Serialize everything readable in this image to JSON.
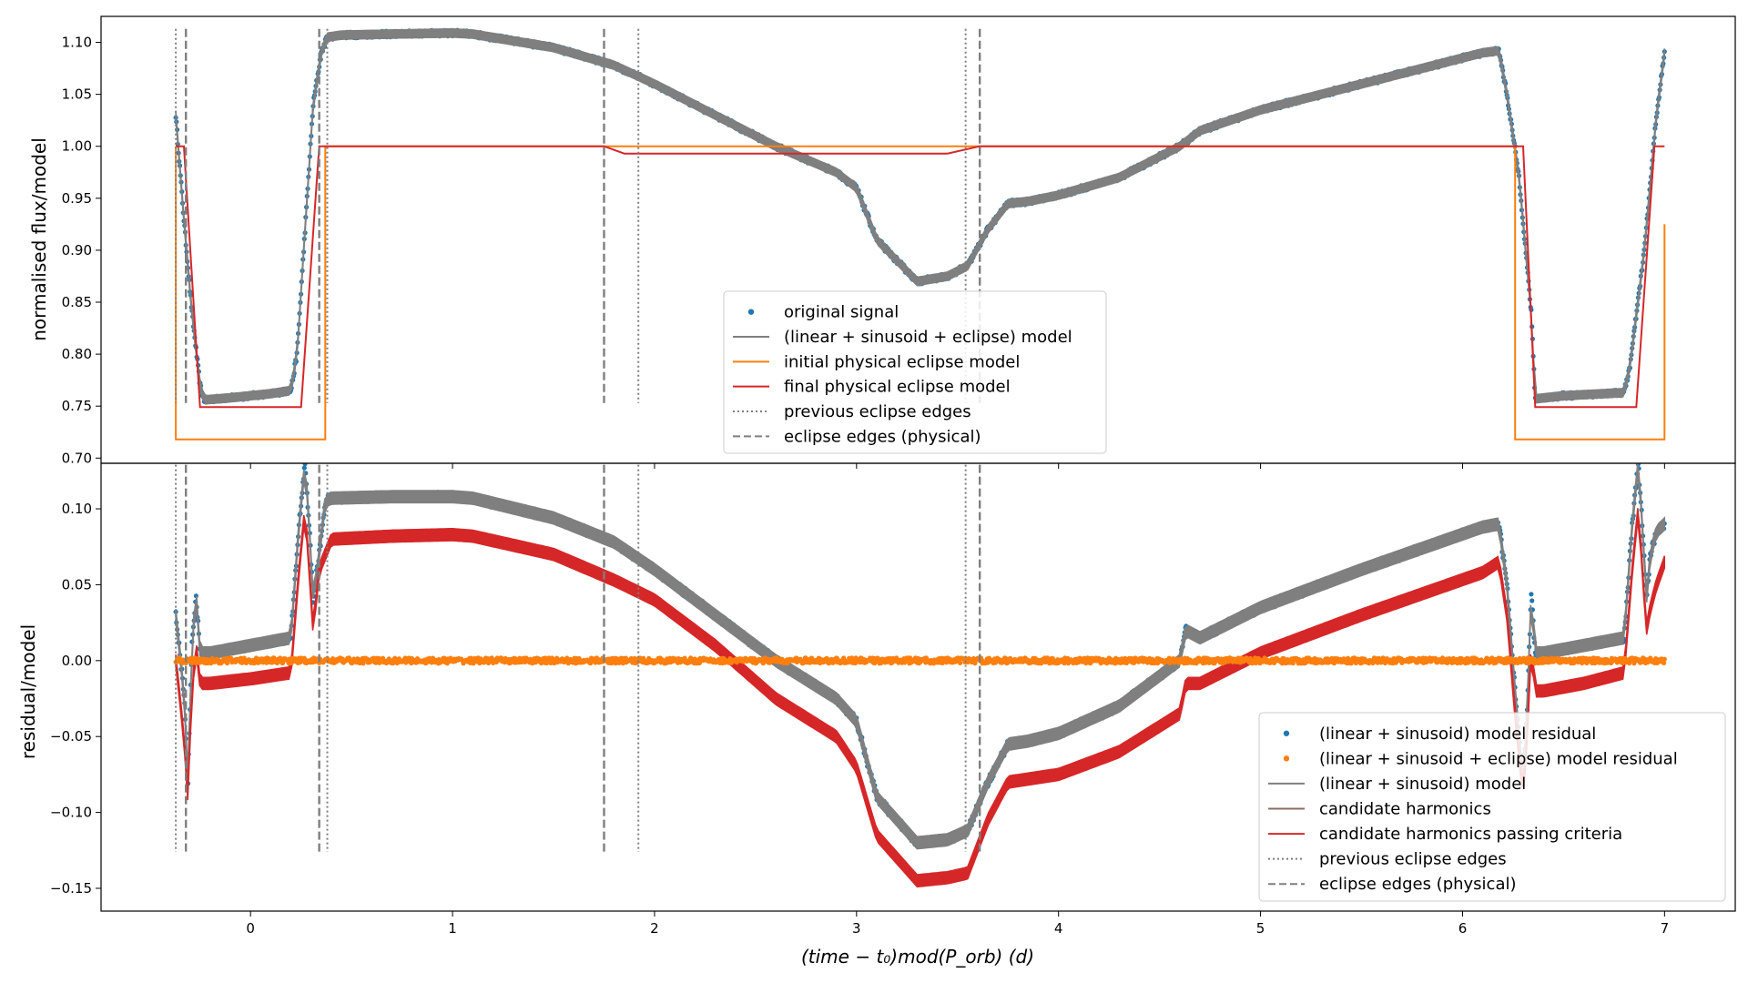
{
  "colors": {
    "blue": "#1f77b4",
    "orange": "#ff7f0e",
    "red": "#d62728",
    "gray": "#7f7f7f",
    "brown": "#8c6d62"
  },
  "xlabel": "(time − t₀)mod(P_orb) (d)",
  "chart_data": [
    {
      "type": "line",
      "panel": "top",
      "ylabel": "normalised flux/model",
      "xlim": [
        -0.74,
        7.35
      ],
      "ylim": [
        0.695,
        1.125
      ],
      "xticks": [
        0,
        1,
        2,
        3,
        4,
        5,
        6,
        7
      ],
      "yticks": [
        0.7,
        0.75,
        0.8,
        0.85,
        0.9,
        0.95,
        1.0,
        1.05,
        1.1
      ],
      "ytick_labels": [
        "0.70",
        "0.75",
        "0.80",
        "0.85",
        "0.90",
        "0.95",
        "1.00",
        "1.05",
        "1.10"
      ],
      "legend_position": "lower-center",
      "legend": [
        {
          "label": "original signal",
          "kind": "point",
          "color": "#1f77b4"
        },
        {
          "label": "(linear + sinusoid + eclipse) model",
          "kind": "line",
          "color": "#7f7f7f"
        },
        {
          "label": "initial physical eclipse model",
          "kind": "line",
          "color": "#ff7f0e"
        },
        {
          "label": "final physical eclipse model",
          "kind": "line",
          "color": "#d62728"
        },
        {
          "label": "previous eclipse edges",
          "kind": "dotted",
          "color": "#7f7f7f"
        },
        {
          "label": "eclipse edges (physical)",
          "kind": "dashed",
          "color": "#7f7f7f"
        }
      ],
      "vlines_previous": [
        -0.37,
        0.38,
        1.92,
        3.54
      ],
      "vlines_physical": [
        -0.32,
        0.34,
        1.75,
        3.61
      ],
      "vline_range": [
        0.753,
        1.113
      ],
      "series": [
        {
          "name": "original signal",
          "kind": "scatter",
          "color": "#1f77b4",
          "spread": 0.003,
          "x": [
            -0.37,
            -0.33,
            -0.29,
            -0.25,
            -0.23,
            -0.1,
            0.1,
            0.2,
            0.23,
            0.27,
            0.31,
            0.35,
            0.38,
            0.45,
            0.7,
            1.0,
            1.1,
            1.5,
            1.8,
            2.0,
            2.3,
            2.6,
            2.9,
            3.0,
            3.1,
            3.3,
            3.45,
            3.55,
            3.65,
            3.75,
            3.85,
            4.0,
            4.3,
            4.6,
            4.7,
            5.0,
            5.5,
            6.1,
            6.18,
            6.22,
            6.28,
            6.34,
            6.36,
            6.5,
            6.8,
            6.83,
            6.9,
            6.96,
            7.0
          ],
          "y": [
            1.03,
            0.93,
            0.84,
            0.77,
            0.756,
            0.758,
            0.762,
            0.765,
            0.8,
            0.92,
            1.04,
            1.09,
            1.105,
            1.107,
            1.108,
            1.109,
            1.108,
            1.095,
            1.078,
            1.06,
            1.03,
            1.0,
            0.975,
            0.96,
            0.91,
            0.87,
            0.875,
            0.885,
            0.92,
            0.945,
            0.947,
            0.953,
            0.97,
            1.0,
            1.015,
            1.035,
            1.06,
            1.09,
            1.092,
            1.05,
            0.97,
            0.84,
            0.757,
            0.76,
            0.763,
            0.79,
            0.9,
            1.03,
            1.09
          ]
        },
        {
          "name": "(linear + sinusoid + eclipse) model",
          "kind": "band",
          "color": "#7f7f7f",
          "width": 0.004,
          "x": [
            -0.37,
            -0.33,
            -0.29,
            -0.25,
            -0.23,
            -0.1,
            0.1,
            0.2,
            0.23,
            0.27,
            0.31,
            0.35,
            0.38,
            0.45,
            0.7,
            1.0,
            1.1,
            1.5,
            1.8,
            2.0,
            2.3,
            2.6,
            2.9,
            3.0,
            3.1,
            3.3,
            3.45,
            3.55,
            3.65,
            3.75,
            3.85,
            4.0,
            4.3,
            4.6,
            4.7,
            5.0,
            5.5,
            6.1,
            6.18,
            6.22,
            6.28,
            6.34,
            6.36,
            6.5,
            6.8,
            6.83,
            6.9,
            6.96,
            7.0
          ],
          "y": [
            1.03,
            0.93,
            0.84,
            0.77,
            0.756,
            0.758,
            0.762,
            0.765,
            0.8,
            0.92,
            1.04,
            1.09,
            1.105,
            1.107,
            1.108,
            1.109,
            1.108,
            1.095,
            1.078,
            1.06,
            1.03,
            1.0,
            0.975,
            0.96,
            0.91,
            0.87,
            0.875,
            0.885,
            0.92,
            0.945,
            0.947,
            0.953,
            0.97,
            1.0,
            1.015,
            1.035,
            1.06,
            1.09,
            1.092,
            1.05,
            0.97,
            0.84,
            0.757,
            0.76,
            0.763,
            0.79,
            0.9,
            1.03,
            1.09
          ]
        },
        {
          "name": "initial physical eclipse model",
          "kind": "line",
          "color": "#ff7f0e",
          "x": [
            -0.37,
            -0.37,
            0.37,
            0.37,
            1.75,
            1.8,
            3.61,
            6.26,
            6.26,
            7.0,
            7.0
          ],
          "y": [
            1.0,
            0.718,
            0.718,
            1.0,
            1.0,
            1.0,
            1.0,
            1.0,
            0.718,
            0.718,
            0.925
          ]
        },
        {
          "name": "final physical eclipse model",
          "kind": "line",
          "color": "#d62728",
          "x": [
            -0.37,
            -0.33,
            -0.25,
            -0.23,
            0.25,
            0.34,
            1.75,
            1.85,
            3.45,
            3.61,
            6.26,
            6.3,
            6.36,
            6.38,
            6.86,
            6.95,
            7.0
          ],
          "y": [
            1.0,
            1.0,
            0.749,
            0.749,
            0.749,
            1.0,
            1.0,
            0.993,
            0.993,
            1.0,
            1.0,
            1.0,
            0.749,
            0.749,
            0.749,
            1.0,
            1.0
          ]
        }
      ]
    },
    {
      "type": "line",
      "panel": "bottom",
      "ylabel": "residual/model",
      "xlim": [
        -0.74,
        7.35
      ],
      "ylim": [
        -0.165,
        0.13
      ],
      "xticks": [
        0,
        1,
        2,
        3,
        4,
        5,
        6,
        7
      ],
      "xtick_labels": [
        "0",
        "1",
        "2",
        "3",
        "4",
        "5",
        "6",
        "7"
      ],
      "yticks": [
        -0.15,
        -0.1,
        -0.05,
        0.0,
        0.05,
        0.1
      ],
      "ytick_labels": [
        "−0.15",
        "−0.10",
        "−0.05",
        "0.00",
        "0.05",
        "0.10"
      ],
      "legend_position": "lower-right",
      "legend": [
        {
          "label": "(linear + sinusoid) model residual",
          "kind": "point",
          "color": "#1f77b4"
        },
        {
          "label": "(linear + sinusoid + eclipse) model residual",
          "kind": "point",
          "color": "#ff7f0e"
        },
        {
          "label": "(linear + sinusoid) model",
          "kind": "line",
          "color": "#7f7f7f"
        },
        {
          "label": "candidate harmonics",
          "kind": "line",
          "color": "#8c6d62"
        },
        {
          "label": "candidate harmonics passing criteria",
          "kind": "line",
          "color": "#d62728"
        },
        {
          "label": "previous eclipse edges",
          "kind": "dotted",
          "color": "#7f7f7f"
        },
        {
          "label": "eclipse edges (physical)",
          "kind": "dashed",
          "color": "#7f7f7f"
        }
      ],
      "vlines_previous": [
        -0.37,
        0.38,
        1.92,
        3.54
      ],
      "vlines_physical": [
        -0.32,
        0.34,
        1.75,
        3.61
      ],
      "vline_range": [
        -0.126,
        0.129
      ],
      "series": [
        {
          "name": "(linear + sinusoid) model residual",
          "kind": "scatter",
          "color": "#1f77b4",
          "spread": 0.003,
          "x": [
            -0.37,
            -0.33,
            -0.31,
            -0.29,
            -0.27,
            -0.25,
            -0.2,
            0.0,
            0.2,
            0.24,
            0.27,
            0.29,
            0.31,
            0.34,
            0.37,
            0.4,
            0.7,
            1.0,
            1.1,
            1.5,
            1.8,
            2.0,
            2.3,
            2.6,
            2.9,
            3.0,
            3.1,
            3.3,
            3.45,
            3.55,
            3.65,
            3.75,
            3.85,
            4.0,
            4.3,
            4.6,
            4.63,
            4.7,
            5.0,
            5.5,
            6.1,
            6.18,
            6.22,
            6.26,
            6.3,
            6.32,
            6.34,
            6.36,
            6.4,
            6.6,
            6.8,
            6.84,
            6.87,
            6.89,
            6.91,
            6.93,
            6.96,
            7.0
          ],
          "y": [
            0.03,
            -0.02,
            -0.08,
            0.01,
            0.045,
            0.005,
            0.005,
            0.01,
            0.015,
            0.09,
            0.13,
            0.09,
            0.04,
            0.07,
            0.105,
            0.107,
            0.108,
            0.108,
            0.107,
            0.094,
            0.078,
            0.06,
            0.03,
            0.0,
            -0.025,
            -0.04,
            -0.09,
            -0.12,
            -0.118,
            -0.112,
            -0.08,
            -0.055,
            -0.053,
            -0.048,
            -0.03,
            0.0,
            0.02,
            0.015,
            0.035,
            0.06,
            0.088,
            0.09,
            0.05,
            -0.02,
            -0.08,
            -0.03,
            0.045,
            0.005,
            0.005,
            0.01,
            0.015,
            0.09,
            0.13,
            0.09,
            0.04,
            0.07,
            0.085,
            0.09
          ]
        },
        {
          "name": "(linear + sinusoid) model",
          "kind": "band",
          "color": "#7f7f7f",
          "width": 0.004,
          "x": [
            -0.37,
            -0.33,
            -0.31,
            -0.29,
            -0.27,
            -0.25,
            -0.2,
            0.0,
            0.2,
            0.24,
            0.27,
            0.29,
            0.31,
            0.34,
            0.37,
            0.4,
            0.7,
            1.0,
            1.1,
            1.5,
            1.8,
            2.0,
            2.3,
            2.6,
            2.9,
            3.0,
            3.1,
            3.3,
            3.45,
            3.55,
            3.65,
            3.75,
            3.85,
            4.0,
            4.3,
            4.6,
            4.63,
            4.7,
            5.0,
            5.5,
            6.1,
            6.18,
            6.22,
            6.26,
            6.3,
            6.32,
            6.34,
            6.36,
            6.4,
            6.6,
            6.8,
            6.84,
            6.87,
            6.89,
            6.91,
            6.93,
            6.96,
            7.0
          ],
          "y": [
            0.03,
            -0.02,
            -0.08,
            0.01,
            0.045,
            0.005,
            0.005,
            0.01,
            0.015,
            0.09,
            0.13,
            0.09,
            0.04,
            0.07,
            0.105,
            0.107,
            0.108,
            0.108,
            0.107,
            0.094,
            0.078,
            0.06,
            0.03,
            0.0,
            -0.025,
            -0.04,
            -0.09,
            -0.12,
            -0.118,
            -0.112,
            -0.08,
            -0.055,
            -0.053,
            -0.048,
            -0.03,
            0.0,
            0.02,
            0.015,
            0.035,
            0.06,
            0.088,
            0.09,
            0.05,
            -0.02,
            -0.08,
            -0.03,
            0.045,
            0.005,
            0.005,
            0.01,
            0.015,
            0.09,
            0.13,
            0.09,
            0.04,
            0.07,
            0.085,
            0.09
          ]
        },
        {
          "name": "candidate harmonics passing criteria",
          "kind": "band",
          "color": "#d62728",
          "width": 0.004,
          "x": [
            -0.37,
            -0.33,
            -0.31,
            -0.29,
            -0.27,
            -0.25,
            -0.2,
            0.0,
            0.2,
            0.24,
            0.27,
            0.29,
            0.31,
            0.34,
            0.4,
            0.7,
            1.0,
            1.1,
            1.5,
            1.8,
            2.0,
            2.3,
            2.6,
            2.9,
            3.0,
            3.1,
            3.3,
            3.45,
            3.55,
            3.65,
            3.75,
            3.85,
            4.0,
            4.3,
            4.6,
            4.63,
            4.7,
            5.0,
            5.5,
            6.1,
            6.18,
            6.22,
            6.26,
            6.3,
            6.32,
            6.34,
            6.36,
            6.4,
            6.6,
            6.8,
            6.84,
            6.87,
            6.89,
            6.91,
            6.93,
            6.96,
            7.0
          ],
          "y": [
            0.0,
            -0.05,
            -0.09,
            -0.02,
            0.01,
            -0.015,
            -0.015,
            -0.012,
            -0.008,
            0.06,
            0.1,
            0.06,
            0.02,
            0.06,
            0.08,
            0.082,
            0.083,
            0.082,
            0.07,
            0.053,
            0.04,
            0.01,
            -0.025,
            -0.05,
            -0.07,
            -0.115,
            -0.145,
            -0.143,
            -0.14,
            -0.105,
            -0.08,
            -0.078,
            -0.075,
            -0.06,
            -0.035,
            -0.015,
            -0.015,
            0.005,
            0.03,
            0.058,
            0.065,
            0.03,
            -0.035,
            -0.09,
            -0.05,
            0.01,
            -0.02,
            -0.02,
            -0.015,
            -0.008,
            0.06,
            0.1,
            0.06,
            0.02,
            0.035,
            0.05,
            0.065
          ]
        },
        {
          "name": "(linear + sinusoid + eclipse) model residual",
          "kind": "scatter",
          "color": "#ff7f0e",
          "spread": 0.0018,
          "x": [
            -0.37,
            7.0
          ],
          "y": [
            0.0,
            0.0
          ]
        }
      ]
    }
  ]
}
